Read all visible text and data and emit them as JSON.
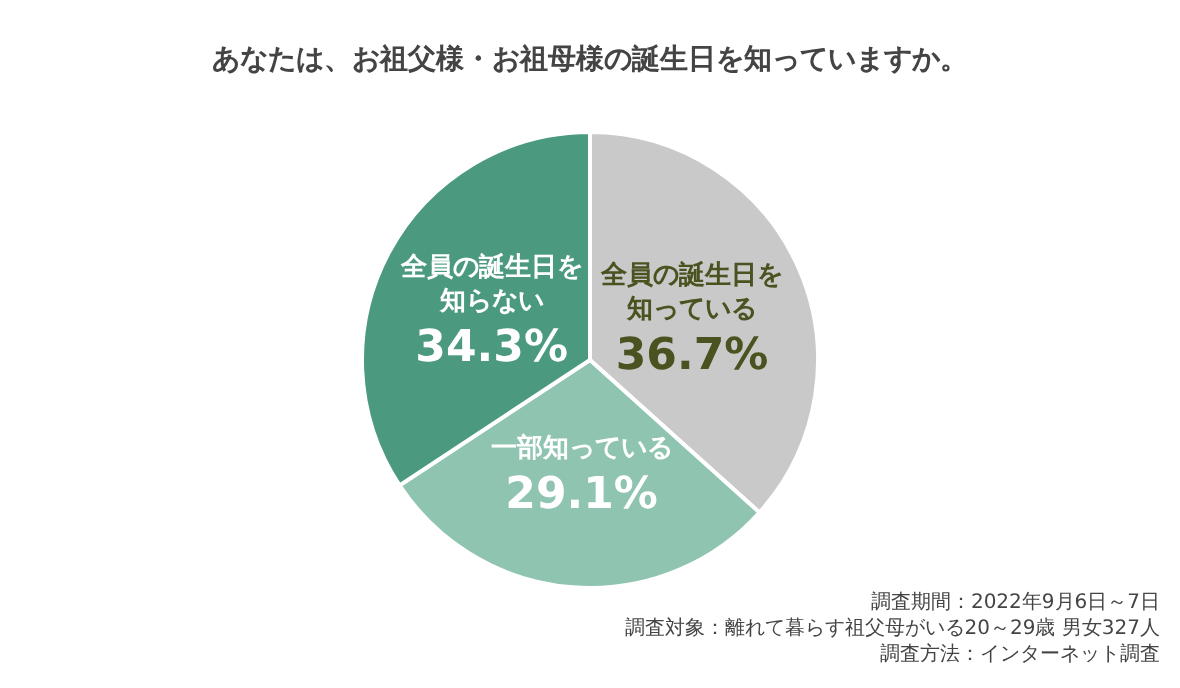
{
  "chart_data": {
    "type": "pie",
    "title": "あなたは、お祖父様・お祖母様の誕生日を知っていますか。",
    "categories": [
      "全員の誕生日を知っている",
      "一部知っている",
      "全員の誕生日を知らない"
    ],
    "values": [
      36.7,
      29.1,
      34.3
    ],
    "colors": [
      "#c9c9c9",
      "#8fc4b0",
      "#4b9a80"
    ],
    "value_labels": [
      "36.7%",
      "29.1%",
      "34.3%"
    ],
    "annotations": [
      "調査期間：2022年9月6日～7日",
      "調査対象：離れて暮らす祖父母がいる20～29歳 男女327人",
      "調査方法：インターネット調査"
    ]
  }
}
